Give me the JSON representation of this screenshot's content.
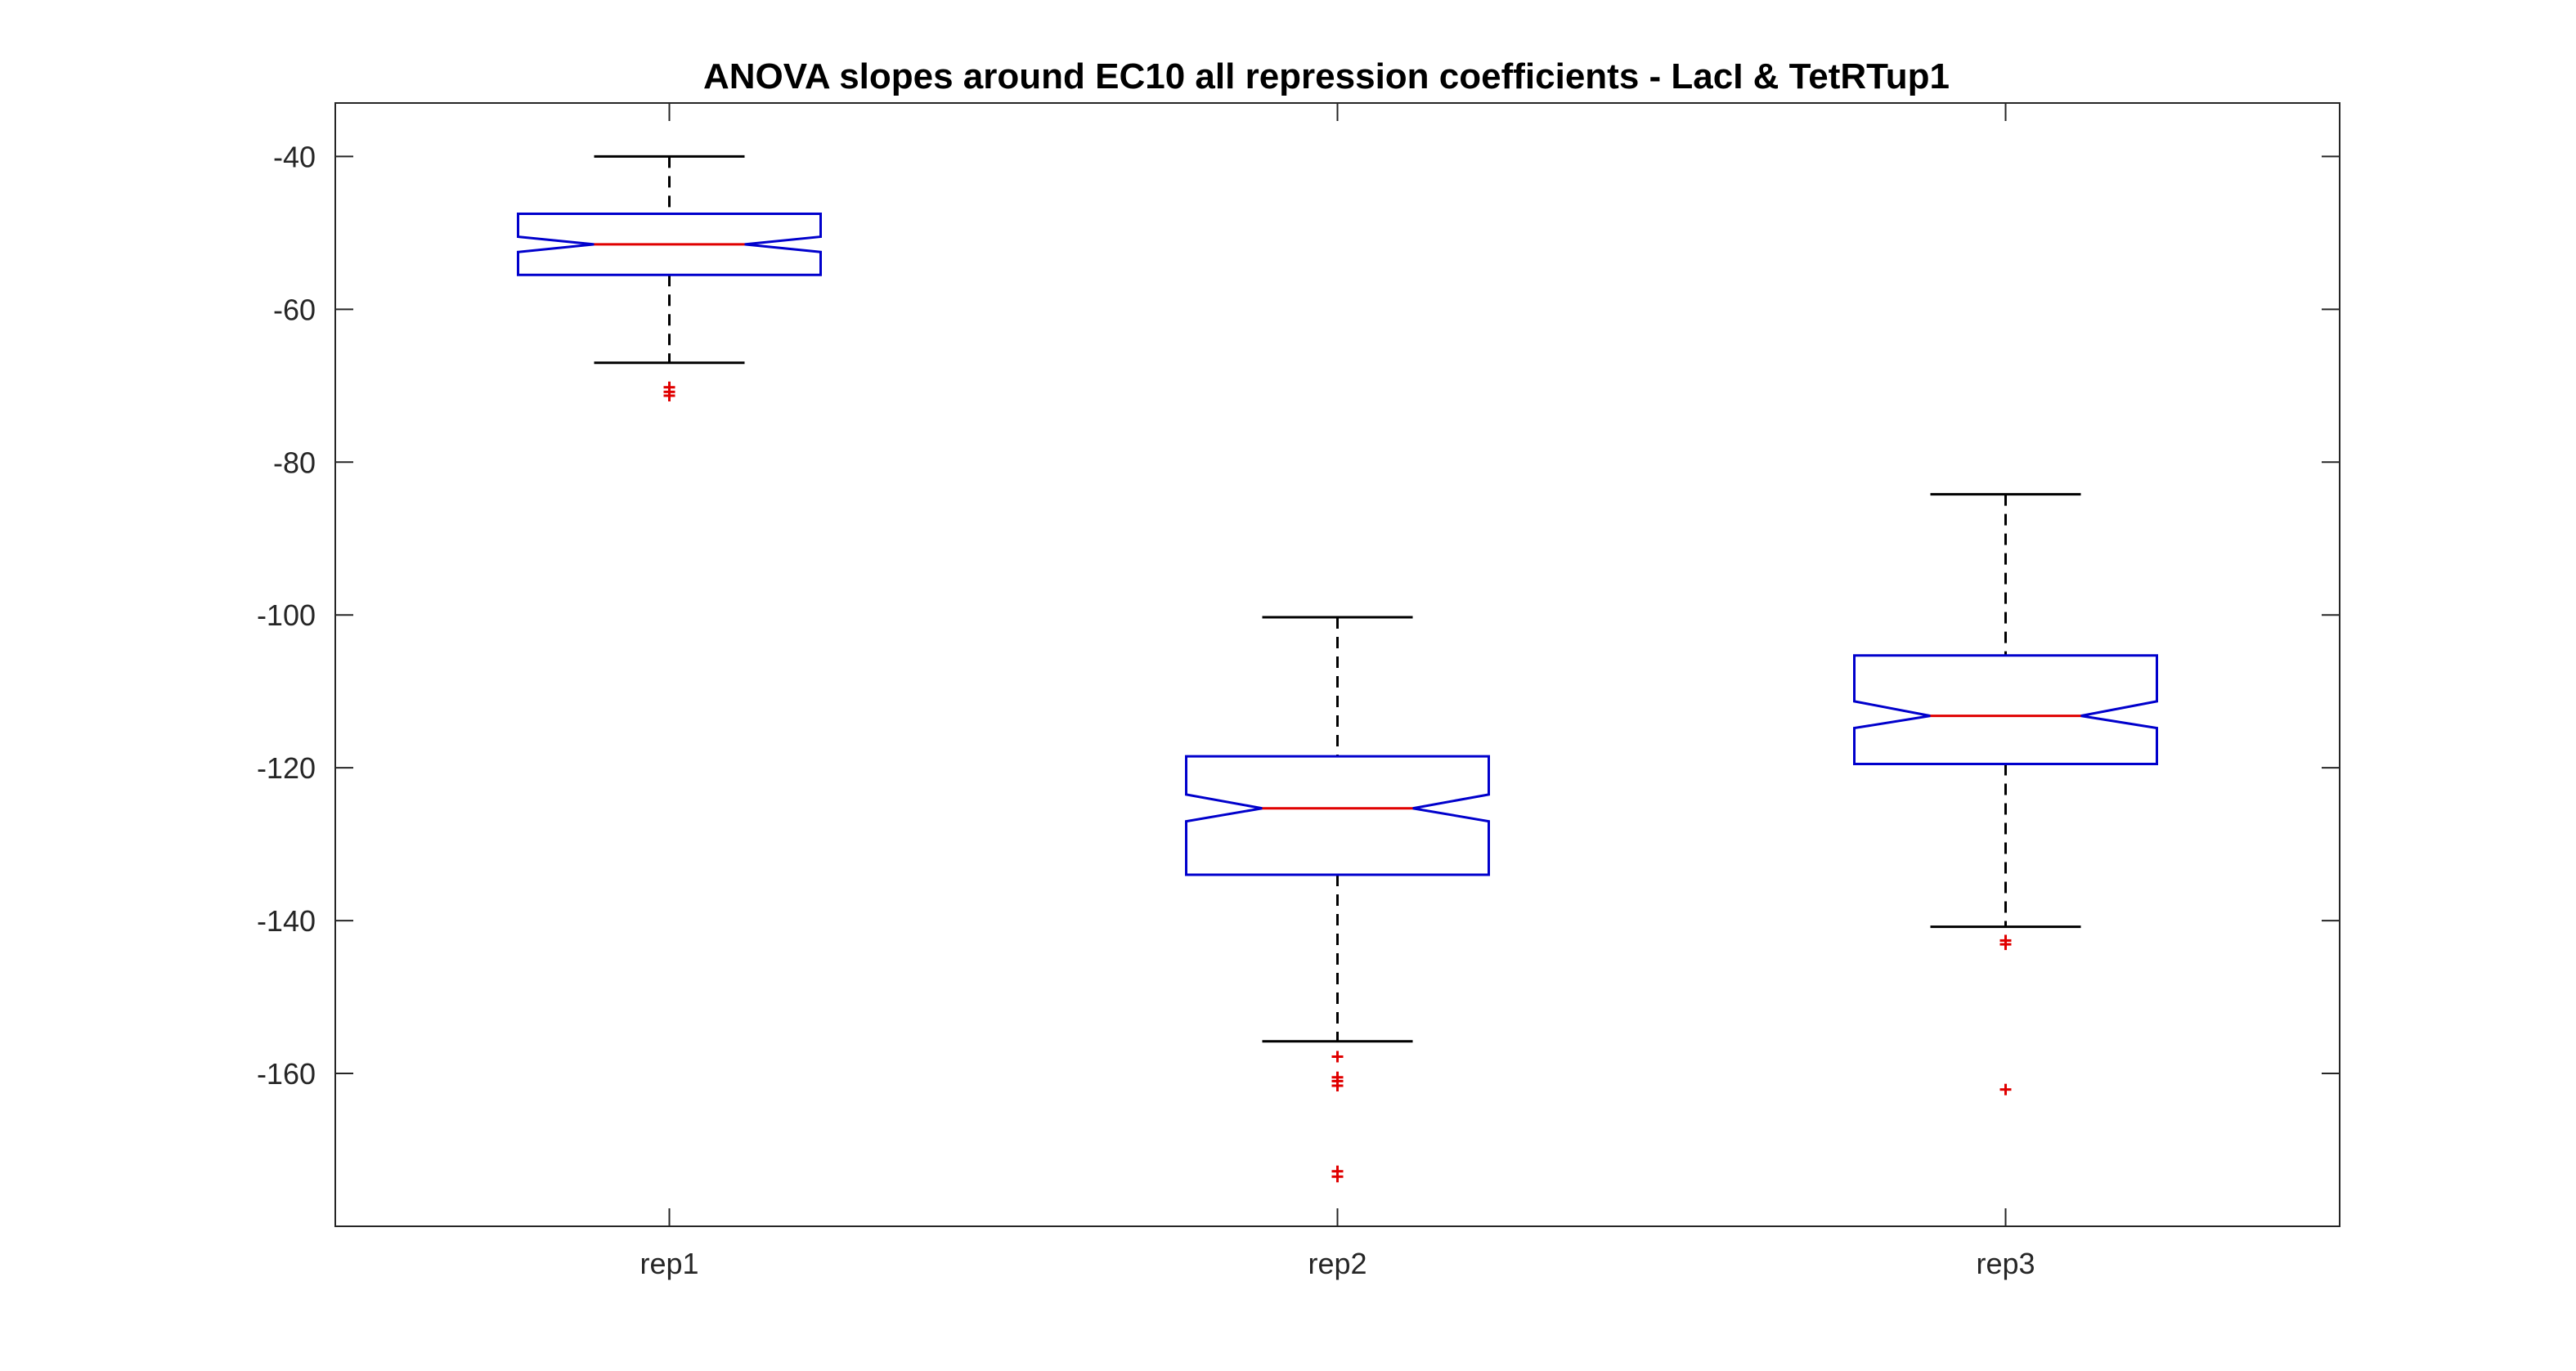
{
  "chart_data": {
    "type": "boxplot",
    "title": "ANOVA slopes around EC10 all repression coefficients - LacI & TetRTup1",
    "xlabel": "",
    "ylabel": "",
    "categories": [
      "rep1",
      "rep2",
      "rep3"
    ],
    "ylim": [
      -180,
      -33
    ],
    "yticks": [
      -40,
      -60,
      -80,
      -100,
      -120,
      -140,
      -160
    ],
    "notched": true,
    "grid": false,
    "colors": {
      "box": "#0000cc",
      "median": "#e00000",
      "whisker": "#000000",
      "outlier": "#e00000"
    },
    "boxes": [
      {
        "label": "rep1",
        "whisker_high": -40,
        "q3": -47.5,
        "notch_high": -50.5,
        "median": -51.5,
        "notch_low": -52.5,
        "q1": -55.5,
        "whisker_low": -67,
        "outliers": [
          -70.2,
          -70.8,
          -71.3
        ]
      },
      {
        "label": "rep2",
        "whisker_high": -100.3,
        "q3": -118.5,
        "notch_high": -123.5,
        "median": -125.3,
        "notch_low": -127,
        "q1": -134,
        "whisker_low": -155.8,
        "outliers": [
          -157.8,
          -160.5,
          -161,
          -161.6,
          -172.8,
          -173.5
        ]
      },
      {
        "label": "rep3",
        "whisker_high": -84.2,
        "q3": -105.3,
        "notch_high": -111.3,
        "median": -113.2,
        "notch_low": -114.8,
        "q1": -119.5,
        "whisker_low": -140.8,
        "outliers": [
          -142.6,
          -143.1,
          -162.1
        ]
      }
    ]
  }
}
